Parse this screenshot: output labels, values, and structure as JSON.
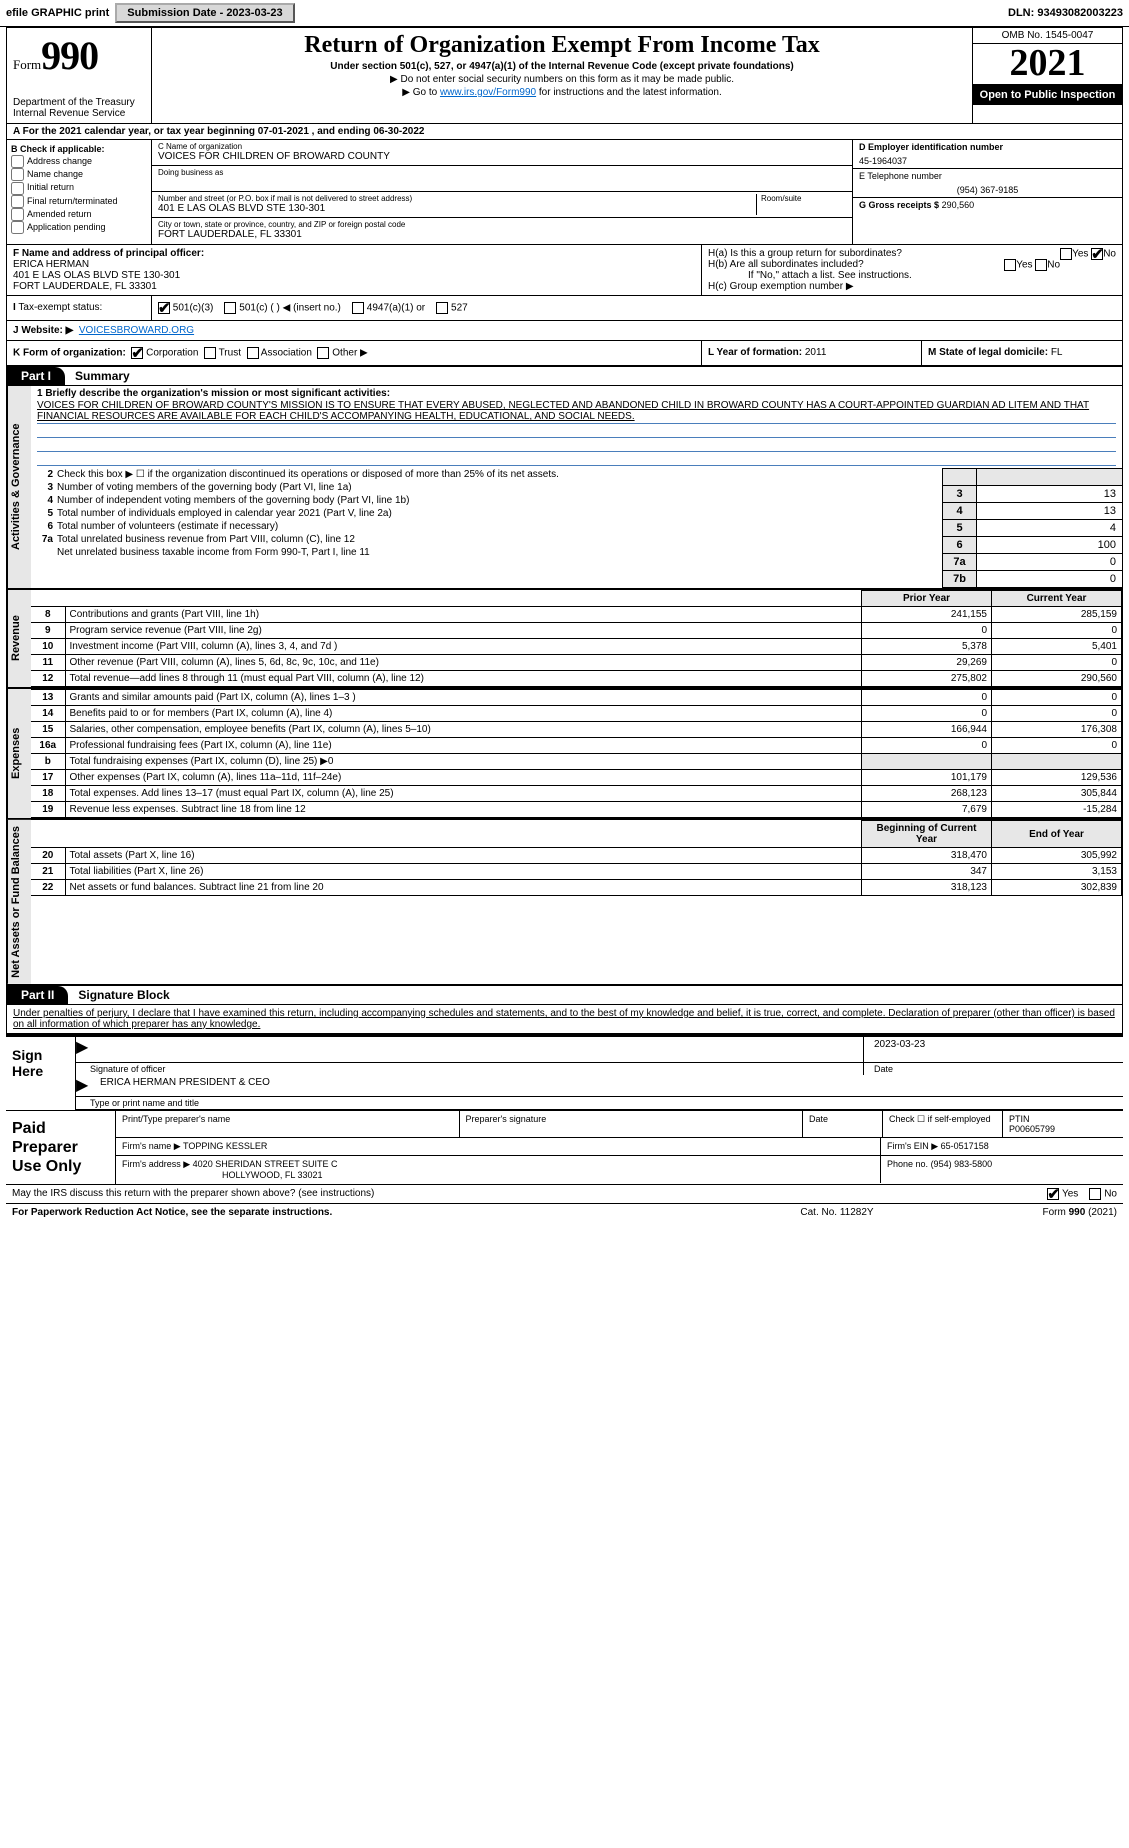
{
  "topbar": {
    "efile": "efile GRAPHIC print",
    "submission": "Submission Date - 2023-03-23",
    "dln": "DLN: 93493082003223"
  },
  "header": {
    "form_word": "Form",
    "form_num": "990",
    "dept": "Department of the Treasury",
    "irs": "Internal Revenue Service",
    "title": "Return of Organization Exempt From Income Tax",
    "sub": "Under section 501(c), 527, or 4947(a)(1) of the Internal Revenue Code (except private foundations)",
    "nossn": "▶ Do not enter social security numbers on this form as it may be made public.",
    "goto_pre": "▶ Go to ",
    "goto_link": "www.irs.gov/Form990",
    "goto_post": " for instructions and the latest information.",
    "omb": "OMB No. 1545-0047",
    "year": "2021",
    "inspection": "Open to Public Inspection"
  },
  "rowA": "A For the 2021 calendar year, or tax year beginning 07-01-2021   , and ending 06-30-2022",
  "checkB": {
    "label": "B Check if applicable:",
    "opts": [
      "Address change",
      "Name change",
      "Initial return",
      "Final return/terminated",
      "Amended return",
      "Application pending"
    ]
  },
  "cbox": {
    "name_label": "C Name of organization",
    "name": "VOICES FOR CHILDREN OF BROWARD COUNTY",
    "dba_label": "Doing business as",
    "dba": "",
    "street_label": "Number and street (or P.O. box if mail is not delivered to street address)",
    "room_label": "Room/suite",
    "street": "401 E LAS OLAS BLVD STE 130-301",
    "city_label": "City or town, state or province, country, and ZIP or foreign postal code",
    "city": "FORT LAUDERDALE, FL  33301"
  },
  "dbox": {
    "ein_label": "D Employer identification number",
    "ein": "45-1964037",
    "phone_label": "E Telephone number",
    "phone": "(954) 367-9185",
    "gross_label": "G Gross receipts $",
    "gross": "290,560"
  },
  "fbox": {
    "label": "F  Name and address of principal officer:",
    "name": "ERICA HERMAN",
    "addr1": "401 E LAS OLAS BLVD STE 130-301",
    "addr2": "FORT LAUDERDALE, FL  33301"
  },
  "hbox": {
    "ha": "H(a)  Is this a group return for subordinates?",
    "hb": "H(b)  Are all subordinates included?",
    "hb2": "If \"No,\" attach a list. See instructions.",
    "hc": "H(c)  Group exemption number ▶",
    "yes": "Yes",
    "no": "No"
  },
  "ibox": {
    "label": "Tax-exempt status:",
    "o1": "501(c)(3)",
    "o2": "501(c) (   ) ◀ (insert no.)",
    "o3": "4947(a)(1) or",
    "o4": "527"
  },
  "jbox": {
    "label": "J Website: ▶",
    "val": "VOICESBROWARD.ORG"
  },
  "kbox": {
    "label": "K Form of organization:",
    "o1": "Corporation",
    "o2": "Trust",
    "o3": "Association",
    "o4": "Other ▶"
  },
  "lbox": {
    "label": "L Year of formation:",
    "val": "2011"
  },
  "mbox": {
    "label": "M State of legal domicile:",
    "val": "FL"
  },
  "part1": {
    "tag": "Part I",
    "title": "Summary"
  },
  "mission": {
    "lead": "1  Briefly describe the organization's mission or most significant activities:",
    "text": "VOICES FOR CHILDREN OF BROWARD COUNTY'S MISSION IS TO ENSURE THAT EVERY ABUSED, NEGLECTED AND ABANDONED CHILD IN BROWARD COUNTY HAS A COURT-APPOINTED GUARDIAN AD LITEM AND THAT FINANCIAL RESOURCES ARE AVAILABLE FOR EACH CHILD'S ACCOMPANYING HEALTH, EDUCATIONAL, AND SOCIAL NEEDS."
  },
  "govlines": {
    "l2": "Check this box ▶ ☐  if the organization discontinued its operations or disposed of more than 25% of its net assets.",
    "l3": "Number of voting members of the governing body (Part VI, line 1a)",
    "l4": "Number of independent voting members of the governing body (Part VI, line 1b)",
    "l5": "Total number of individuals employed in calendar year 2021 (Part V, line 2a)",
    "l6": "Total number of volunteers (estimate if necessary)",
    "l7a": "Total unrelated business revenue from Part VIII, column (C), line 12",
    "l7b": "Net unrelated business taxable income from Form 990-T, Part I, line 11",
    "v3": "13",
    "v4": "13",
    "v5": "4",
    "v6": "100",
    "v7a": "0",
    "v7b": "0"
  },
  "revhdr": {
    "prior": "Prior Year",
    "current": "Current Year"
  },
  "revenue": [
    {
      "n": "8",
      "d": "Contributions and grants (Part VIII, line 1h)",
      "p": "241,155",
      "c": "285,159"
    },
    {
      "n": "9",
      "d": "Program service revenue (Part VIII, line 2g)",
      "p": "0",
      "c": "0"
    },
    {
      "n": "10",
      "d": "Investment income (Part VIII, column (A), lines 3, 4, and 7d )",
      "p": "5,378",
      "c": "5,401"
    },
    {
      "n": "11",
      "d": "Other revenue (Part VIII, column (A), lines 5, 6d, 8c, 9c, 10c, and 11e)",
      "p": "29,269",
      "c": "0"
    },
    {
      "n": "12",
      "d": "Total revenue—add lines 8 through 11 (must equal Part VIII, column (A), line 12)",
      "p": "275,802",
      "c": "290,560"
    }
  ],
  "expenses": [
    {
      "n": "13",
      "d": "Grants and similar amounts paid (Part IX, column (A), lines 1–3 )",
      "p": "0",
      "c": "0"
    },
    {
      "n": "14",
      "d": "Benefits paid to or for members (Part IX, column (A), line 4)",
      "p": "0",
      "c": "0"
    },
    {
      "n": "15",
      "d": "Salaries, other compensation, employee benefits (Part IX, column (A), lines 5–10)",
      "p": "166,944",
      "c": "176,308"
    },
    {
      "n": "16a",
      "d": "Professional fundraising fees (Part IX, column (A), line 11e)",
      "p": "0",
      "c": "0"
    },
    {
      "n": "b",
      "d": "Total fundraising expenses (Part IX, column (D), line 25) ▶0",
      "p": "__shade__",
      "c": "__shade__"
    },
    {
      "n": "17",
      "d": "Other expenses (Part IX, column (A), lines 11a–11d, 11f–24e)",
      "p": "101,179",
      "c": "129,536"
    },
    {
      "n": "18",
      "d": "Total expenses. Add lines 13–17 (must equal Part IX, column (A), line 25)",
      "p": "268,123",
      "c": "305,844"
    },
    {
      "n": "19",
      "d": "Revenue less expenses. Subtract line 18 from line 12",
      "p": "7,679",
      "c": "-15,284"
    }
  ],
  "nethdr": {
    "prior": "Beginning of Current Year",
    "current": "End of Year"
  },
  "netassets": [
    {
      "n": "20",
      "d": "Total assets (Part X, line 16)",
      "p": "318,470",
      "c": "305,992"
    },
    {
      "n": "21",
      "d": "Total liabilities (Part X, line 26)",
      "p": "347",
      "c": "3,153"
    },
    {
      "n": "22",
      "d": "Net assets or fund balances. Subtract line 21 from line 20",
      "p": "318,123",
      "c": "302,839"
    }
  ],
  "part2": {
    "tag": "Part II",
    "title": "Signature Block"
  },
  "penalties": "Under penalties of perjury, I declare that I have examined this return, including accompanying schedules and statements, and to the best of my knowledge and belief, it is true, correct, and complete. Declaration of preparer (other than officer) is based on all information of which preparer has any knowledge.",
  "sign": {
    "here": "Sign Here",
    "sig_label": "Signature of officer",
    "date_label": "Date",
    "date": "2023-03-23",
    "name": "ERICA HERMAN  PRESIDENT & CEO",
    "name_label": "Type or print name and title"
  },
  "paid": {
    "title": "Paid Preparer Use Only",
    "col1": "Print/Type preparer's name",
    "col2": "Preparer's signature",
    "col3": "Date",
    "col4a": "Check ☐ if self-employed",
    "col4b_label": "PTIN",
    "col4b": "P00605799",
    "firm_label": "Firm's name    ▶",
    "firm": "TOPPING KESSLER",
    "ein_label": "Firm's EIN ▶",
    "ein": "65-0517158",
    "addr_label": "Firm's address ▶",
    "addr1": "4020 SHERIDAN STREET SUITE C",
    "addr2": "HOLLYWOOD, FL  33021",
    "phone_label": "Phone no.",
    "phone": "(954) 983-5800"
  },
  "discuss": {
    "q": "May the IRS discuss this return with the preparer shown above? (see instructions)",
    "yes": "Yes",
    "no": "No"
  },
  "footer": {
    "left": "For Paperwork Reduction Act Notice, see the separate instructions.",
    "mid": "Cat. No. 11282Y",
    "right_pre": "Form ",
    "right_bold": "990",
    "right_post": " (2021)"
  },
  "vtabs": {
    "gov": "Activities & Governance",
    "rev": "Revenue",
    "exp": "Expenses",
    "net": "Net Assets or Fund Balances"
  }
}
